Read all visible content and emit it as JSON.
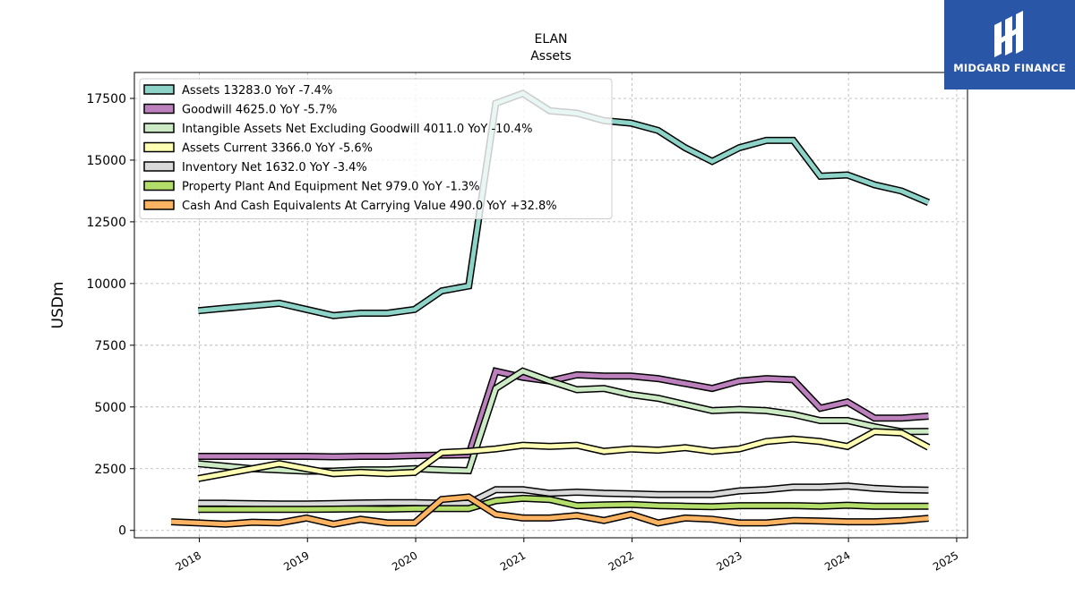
{
  "logo": {
    "text": "MIDGARD FINANCE",
    "bg_color": "#2a56a8"
  },
  "chart_data": {
    "type": "line",
    "title": "ELAN",
    "subtitle": "Assets",
    "ylabel": "USDm",
    "xlabel": "",
    "ylim": [
      -300,
      18550
    ],
    "xlim": [
      2017.4,
      2025.1
    ],
    "yticks": [
      0,
      2500,
      5000,
      7500,
      10000,
      12500,
      15000,
      17500
    ],
    "ytick_labels": [
      "0",
      "2500",
      "5000",
      "7500",
      "10000",
      "12500",
      "15000",
      "17500"
    ],
    "xticks": [
      2018,
      2019,
      2020,
      2021,
      2022,
      2023,
      2024,
      2025
    ],
    "xtick_labels": [
      "2018",
      "2019",
      "2020",
      "2021",
      "2022",
      "2023",
      "2024",
      "2025"
    ],
    "grid": true,
    "legend_position": "top-left",
    "series": [
      {
        "name": "Assets  13283.0 YoY -7.4%",
        "color": "#8dd3c7",
        "points": [
          [
            2017.99,
            8900
          ],
          [
            2018.24,
            9000
          ],
          [
            2018.49,
            9100
          ],
          [
            2018.74,
            9200
          ],
          [
            2018.99,
            8950
          ],
          [
            2019.24,
            8700
          ],
          [
            2019.49,
            8800
          ],
          [
            2019.74,
            8800
          ],
          [
            2019.99,
            8950
          ],
          [
            2020.24,
            9700
          ],
          [
            2020.49,
            9900
          ],
          [
            2020.74,
            17300
          ],
          [
            2020.99,
            17700
          ],
          [
            2021.24,
            17000
          ],
          [
            2021.49,
            16900
          ],
          [
            2021.74,
            16600
          ],
          [
            2021.99,
            16500
          ],
          [
            2022.24,
            16200
          ],
          [
            2022.49,
            15500
          ],
          [
            2022.74,
            14950
          ],
          [
            2022.99,
            15500
          ],
          [
            2023.24,
            15800
          ],
          [
            2023.49,
            15800
          ],
          [
            2023.74,
            14350
          ],
          [
            2023.99,
            14400
          ],
          [
            2024.24,
            14000
          ],
          [
            2024.49,
            13750
          ],
          [
            2024.74,
            13283
          ]
        ]
      },
      {
        "name": "Goodwill  4625.0 YoY -5.7%",
        "color": "#bc80bd",
        "points": [
          [
            2017.99,
            3000
          ],
          [
            2018.24,
            3000
          ],
          [
            2018.49,
            3000
          ],
          [
            2018.74,
            3000
          ],
          [
            2018.99,
            3000
          ],
          [
            2019.24,
            2980
          ],
          [
            2019.49,
            3000
          ],
          [
            2019.74,
            3000
          ],
          [
            2019.99,
            3030
          ],
          [
            2020.24,
            3050
          ],
          [
            2020.49,
            3060
          ],
          [
            2020.74,
            6450
          ],
          [
            2020.99,
            6200
          ],
          [
            2021.24,
            6050
          ],
          [
            2021.49,
            6300
          ],
          [
            2021.74,
            6250
          ],
          [
            2021.99,
            6250
          ],
          [
            2022.24,
            6150
          ],
          [
            2022.49,
            5950
          ],
          [
            2022.74,
            5750
          ],
          [
            2022.99,
            6050
          ],
          [
            2023.24,
            6150
          ],
          [
            2023.49,
            6100
          ],
          [
            2023.74,
            4950
          ],
          [
            2023.99,
            5200
          ],
          [
            2024.24,
            4550
          ],
          [
            2024.49,
            4550
          ],
          [
            2024.74,
            4625
          ]
        ]
      },
      {
        "name": "Intangible Assets Net Excluding Goodwill  4011.0 YoY -10.4%",
        "color": "#ccebc5",
        "points": [
          [
            2017.99,
            2700
          ],
          [
            2018.24,
            2600
          ],
          [
            2018.49,
            2500
          ],
          [
            2018.74,
            2450
          ],
          [
            2018.99,
            2400
          ],
          [
            2019.24,
            2400
          ],
          [
            2019.49,
            2450
          ],
          [
            2019.74,
            2450
          ],
          [
            2019.99,
            2500
          ],
          [
            2020.24,
            2450
          ],
          [
            2020.49,
            2420
          ],
          [
            2020.74,
            5750
          ],
          [
            2020.99,
            6450
          ],
          [
            2021.24,
            6050
          ],
          [
            2021.49,
            5700
          ],
          [
            2021.74,
            5750
          ],
          [
            2021.99,
            5500
          ],
          [
            2022.24,
            5350
          ],
          [
            2022.49,
            5100
          ],
          [
            2022.74,
            4850
          ],
          [
            2022.99,
            4900
          ],
          [
            2023.24,
            4850
          ],
          [
            2023.49,
            4700
          ],
          [
            2023.74,
            4450
          ],
          [
            2023.99,
            4450
          ],
          [
            2024.24,
            4200
          ],
          [
            2024.49,
            4000
          ],
          [
            2024.74,
            4011
          ]
        ]
      },
      {
        "name": "Assets Current  3366.0 YoY -5.6%",
        "color": "#ffffb3",
        "points": [
          [
            2017.99,
            2100
          ],
          [
            2018.24,
            2300
          ],
          [
            2018.49,
            2500
          ],
          [
            2018.74,
            2700
          ],
          [
            2018.99,
            2500
          ],
          [
            2019.24,
            2300
          ],
          [
            2019.49,
            2350
          ],
          [
            2019.74,
            2300
          ],
          [
            2019.99,
            2350
          ],
          [
            2020.24,
            3150
          ],
          [
            2020.49,
            3200
          ],
          [
            2020.74,
            3300
          ],
          [
            2020.99,
            3450
          ],
          [
            2021.24,
            3400
          ],
          [
            2021.49,
            3450
          ],
          [
            2021.74,
            3200
          ],
          [
            2021.99,
            3300
          ],
          [
            2022.24,
            3250
          ],
          [
            2022.49,
            3350
          ],
          [
            2022.74,
            3200
          ],
          [
            2022.99,
            3300
          ],
          [
            2023.24,
            3600
          ],
          [
            2023.49,
            3700
          ],
          [
            2023.74,
            3600
          ],
          [
            2023.99,
            3400
          ],
          [
            2024.24,
            4000
          ],
          [
            2024.49,
            3950
          ],
          [
            2024.74,
            3366
          ]
        ]
      },
      {
        "name": "Inventory Net  1632.0 YoY -3.4%",
        "color": "#d9d9d9",
        "points": [
          [
            2017.99,
            1100
          ],
          [
            2018.24,
            1100
          ],
          [
            2018.49,
            1080
          ],
          [
            2018.74,
            1070
          ],
          [
            2018.99,
            1070
          ],
          [
            2019.24,
            1090
          ],
          [
            2019.49,
            1110
          ],
          [
            2019.74,
            1120
          ],
          [
            2019.99,
            1120
          ],
          [
            2020.24,
            1100
          ],
          [
            2020.49,
            1100
          ],
          [
            2020.74,
            1650
          ],
          [
            2020.99,
            1650
          ],
          [
            2021.24,
            1500
          ],
          [
            2021.49,
            1550
          ],
          [
            2021.74,
            1500
          ],
          [
            2021.99,
            1480
          ],
          [
            2022.24,
            1450
          ],
          [
            2022.49,
            1450
          ],
          [
            2022.74,
            1450
          ],
          [
            2022.99,
            1600
          ],
          [
            2023.24,
            1650
          ],
          [
            2023.49,
            1750
          ],
          [
            2023.74,
            1750
          ],
          [
            2023.99,
            1800
          ],
          [
            2024.24,
            1700
          ],
          [
            2024.49,
            1650
          ],
          [
            2024.74,
            1632
          ]
        ]
      },
      {
        "name": "Property Plant And Equipment Net  979.0 YoY -1.3%",
        "color": "#b3de69",
        "points": [
          [
            2017.99,
            850
          ],
          [
            2018.24,
            850
          ],
          [
            2018.49,
            850
          ],
          [
            2018.74,
            850
          ],
          [
            2018.99,
            850
          ],
          [
            2019.24,
            860
          ],
          [
            2019.49,
            870
          ],
          [
            2019.74,
            860
          ],
          [
            2019.99,
            880
          ],
          [
            2020.24,
            880
          ],
          [
            2020.49,
            880
          ],
          [
            2020.74,
            1200
          ],
          [
            2020.99,
            1300
          ],
          [
            2021.24,
            1250
          ],
          [
            2021.49,
            1000
          ],
          [
            2021.74,
            1030
          ],
          [
            2021.99,
            1050
          ],
          [
            2022.24,
            1000
          ],
          [
            2022.49,
            980
          ],
          [
            2022.74,
            960
          ],
          [
            2022.99,
            1000
          ],
          [
            2023.24,
            1000
          ],
          [
            2023.49,
            1000
          ],
          [
            2023.74,
            980
          ],
          [
            2023.99,
            1020
          ],
          [
            2024.24,
            980
          ],
          [
            2024.49,
            980
          ],
          [
            2024.74,
            979
          ]
        ]
      },
      {
        "name": "Cash And Cash Equivalents At Carrying Value  490.0 YoY +32.8%",
        "color": "#fdb462",
        "points": [
          [
            2017.74,
            350
          ],
          [
            2017.99,
            300
          ],
          [
            2018.24,
            250
          ],
          [
            2018.49,
            330
          ],
          [
            2018.74,
            300
          ],
          [
            2018.99,
            500
          ],
          [
            2019.24,
            250
          ],
          [
            2019.49,
            450
          ],
          [
            2019.74,
            300
          ],
          [
            2019.99,
            300
          ],
          [
            2020.24,
            1250
          ],
          [
            2020.49,
            1350
          ],
          [
            2020.74,
            650
          ],
          [
            2020.99,
            500
          ],
          [
            2021.24,
            500
          ],
          [
            2021.49,
            600
          ],
          [
            2021.74,
            400
          ],
          [
            2021.99,
            650
          ],
          [
            2022.24,
            300
          ],
          [
            2022.49,
            500
          ],
          [
            2022.74,
            450
          ],
          [
            2022.99,
            300
          ],
          [
            2023.24,
            300
          ],
          [
            2023.49,
            400
          ],
          [
            2023.74,
            380
          ],
          [
            2023.99,
            350
          ],
          [
            2024.24,
            350
          ],
          [
            2024.49,
            400
          ],
          [
            2024.74,
            490
          ]
        ]
      }
    ]
  }
}
